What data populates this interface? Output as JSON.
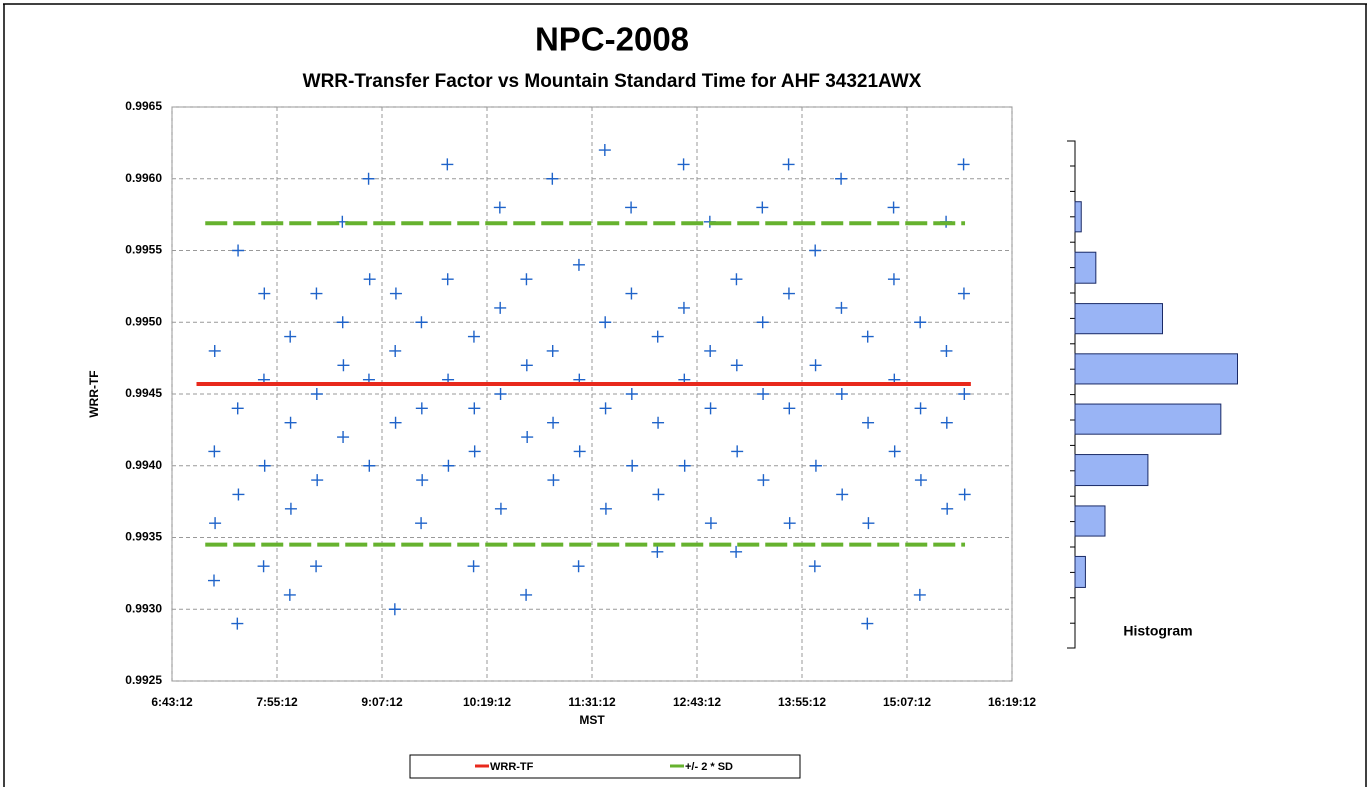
{
  "chart_data": [
    {
      "type": "scatter",
      "title": "NPC-2008",
      "subtitle": "WRR-Transfer Factor vs Mountain Standard Time for AHF 34321AWX",
      "x_label": "MST",
      "y_label": "WRR-TF",
      "xlim": [
        "6:43:12",
        "16:19:12"
      ],
      "xticks": [
        "6:43:12",
        "7:55:12",
        "9:07:12",
        "10:19:12",
        "11:31:12",
        "12:43:12",
        "13:55:12",
        "15:07:12",
        "16:19:12"
      ],
      "ylim": [
        0.9925,
        0.9965
      ],
      "yticks": [
        0.9925,
        {
          "value": 0.993,
          "label": "0.9930"
        },
        0.9935,
        {
          "value": 0.994,
          "label": "0.9940"
        },
        0.9945,
        {
          "value": 0.995,
          "label": "0.9950"
        },
        0.9955,
        {
          "value": 0.996,
          "label": "0.9960"
        },
        0.9965
      ],
      "grid": true,
      "legend": "bottom",
      "series": [
        {
          "kind": "points",
          "color": "#1f63c9",
          "x": [
            "7:12:00",
            "7:12:15",
            "7:12:30",
            "7:12:45",
            "7:28:00",
            "7:28:15",
            "7:28:30",
            "7:28:45",
            "7:46:00",
            "7:46:15",
            "7:46:30",
            "7:46:45",
            "8:04:00",
            "8:04:15",
            "8:04:30",
            "8:04:45",
            "8:22:00",
            "8:22:15",
            "8:22:30",
            "8:22:45",
            "8:40:00",
            "8:40:15",
            "8:40:30",
            "8:40:45",
            "8:58:00",
            "8:58:15",
            "8:58:30",
            "8:58:45",
            "9:16:00",
            "9:16:15",
            "9:16:30",
            "9:16:45",
            "9:34:00",
            "9:34:15",
            "9:34:30",
            "9:34:45",
            "9:52:00",
            "9:52:15",
            "9:52:30",
            "9:52:45",
            "10:10:00",
            "10:10:15",
            "10:10:30",
            "10:10:45",
            "10:28:00",
            "10:28:15",
            "10:28:30",
            "10:28:45",
            "10:46:00",
            "10:46:15",
            "10:46:30",
            "10:46:45",
            "11:04:00",
            "11:04:15",
            "11:04:30",
            "11:04:45",
            "11:22:00",
            "11:22:15",
            "11:22:30",
            "11:22:45",
            "11:40:00",
            "11:40:15",
            "11:40:30",
            "11:40:45",
            "11:58:00",
            "11:58:15",
            "11:58:30",
            "11:58:45",
            "12:16:00",
            "12:16:15",
            "12:16:30",
            "12:16:45",
            "12:34:00",
            "12:34:15",
            "12:34:30",
            "12:34:45",
            "12:52:00",
            "12:52:15",
            "12:52:30",
            "12:52:45",
            "13:10:00",
            "13:10:15",
            "13:10:30",
            "13:10:45",
            "13:28:00",
            "13:28:15",
            "13:28:30",
            "13:28:45",
            "13:46:00",
            "13:46:15",
            "13:46:30",
            "13:46:45",
            "14:04:00",
            "14:04:15",
            "14:04:30",
            "14:04:45",
            "14:22:00",
            "14:22:15",
            "14:22:30",
            "14:22:45",
            "14:40:00",
            "14:40:15",
            "14:40:30",
            "14:40:45",
            "14:58:00",
            "14:58:15",
            "14:58:30",
            "14:58:45",
            "15:16:00",
            "15:16:15",
            "15:16:30",
            "15:16:45",
            "15:34:00",
            "15:34:15",
            "15:34:30",
            "15:34:45",
            "15:46:00",
            "15:46:15",
            "15:46:30",
            "15:46:45"
          ],
          "y": [
            0.9932,
            0.9941,
            0.9948,
            0.9936,
            0.9929,
            0.9944,
            0.9955,
            0.9938,
            0.9933,
            0.9946,
            0.9952,
            0.994,
            0.9931,
            0.9949,
            0.9943,
            0.9937,
            0.9933,
            0.9952,
            0.9945,
            0.9939,
            0.9957,
            0.995,
            0.9942,
            0.9947,
            0.996,
            0.9946,
            0.994,
            0.9953,
            0.993,
            0.9948,
            0.9943,
            0.9952,
            0.9936,
            0.995,
            0.9944,
            0.9939,
            0.9961,
            0.9953,
            0.9946,
            0.994,
            0.9933,
            0.9949,
            0.9944,
            0.9941,
            0.9958,
            0.9951,
            0.9945,
            0.9937,
            0.9931,
            0.9953,
            0.9947,
            0.9942,
            0.996,
            0.9948,
            0.9943,
            0.9939,
            0.9933,
            0.9954,
            0.9946,
            0.9941,
            0.9962,
            0.995,
            0.9944,
            0.9937,
            0.9958,
            0.9952,
            0.9945,
            0.994,
            0.9934,
            0.9949,
            0.9943,
            0.9938,
            0.9961,
            0.9951,
            0.9946,
            0.994,
            0.9957,
            0.9948,
            0.9944,
            0.9936,
            0.9934,
            0.9953,
            0.9947,
            0.9941,
            0.9958,
            0.995,
            0.9945,
            0.9939,
            0.9961,
            0.9952,
            0.9944,
            0.9936,
            0.9933,
            0.9955,
            0.9947,
            0.994,
            0.996,
            0.9951,
            0.9945,
            0.9938,
            0.9929,
            0.9949,
            0.9943,
            0.9936,
            0.9958,
            0.9953,
            0.9946,
            0.9941,
            0.9931,
            0.995,
            0.9944,
            0.9939,
            0.9957,
            0.9948,
            0.9943,
            0.9937,
            0.9961,
            0.9952,
            0.9945,
            0.9938
          ]
        },
        {
          "kind": "line",
          "name": "WRR-TF",
          "color": "#e8291c",
          "x": [
            "7:00:00",
            "15:51:00"
          ],
          "y": [
            0.99457,
            0.99457
          ]
        },
        {
          "kind": "dashed",
          "name": "+/- 2 * SD",
          "color": "#66b22e",
          "x": [
            "7:06:00",
            "15:47:00",
            null,
            "7:06:00",
            "15:47:00"
          ],
          "y": [
            0.99569,
            0.99569,
            null,
            0.99345,
            0.99345
          ]
        }
      ]
    },
    {
      "type": "histogram",
      "orientation": "horizontal",
      "title": "Histogram",
      "color": "#99b4f5",
      "bins": [
        0.99308,
        0.99344,
        0.99379,
        0.99415,
        0.9945,
        0.99485,
        0.9952,
        0.99556,
        0.99591
      ],
      "values": [
        25,
        72,
        175,
        350,
        390,
        210,
        50,
        15
      ],
      "xlim": [
        0,
        420
      ],
      "ylim": [
        0.9925,
        0.9965
      ]
    }
  ]
}
